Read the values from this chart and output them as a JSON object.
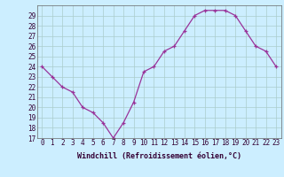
{
  "x": [
    0,
    1,
    2,
    3,
    4,
    5,
    6,
    7,
    8,
    9,
    10,
    11,
    12,
    13,
    14,
    15,
    16,
    17,
    18,
    19,
    20,
    21,
    22,
    23
  ],
  "y": [
    24,
    23,
    22,
    21.5,
    20,
    19.5,
    18.5,
    17,
    18.5,
    20.5,
    23.5,
    24,
    25.5,
    26,
    27.5,
    29,
    29.5,
    29.5,
    29.5,
    29,
    27.5,
    26,
    25.5,
    24
  ],
  "line_color": "#993399",
  "marker": "+",
  "bg_color": "#cceeff",
  "grid_color": "#aacccc",
  "axis_bg": "#cceeff",
  "xlabel": "Windchill (Refroidissement éolien,°C)",
  "xlabel_fontsize": 6.0,
  "tick_fontsize": 5.5,
  "ylim": [
    17,
    30
  ],
  "xlim": [
    -0.5,
    23.5
  ],
  "yticks": [
    17,
    18,
    19,
    20,
    21,
    22,
    23,
    24,
    25,
    26,
    27,
    28,
    29
  ],
  "xticks": [
    0,
    1,
    2,
    3,
    4,
    5,
    6,
    7,
    8,
    9,
    10,
    11,
    12,
    13,
    14,
    15,
    16,
    17,
    18,
    19,
    20,
    21,
    22,
    23
  ]
}
